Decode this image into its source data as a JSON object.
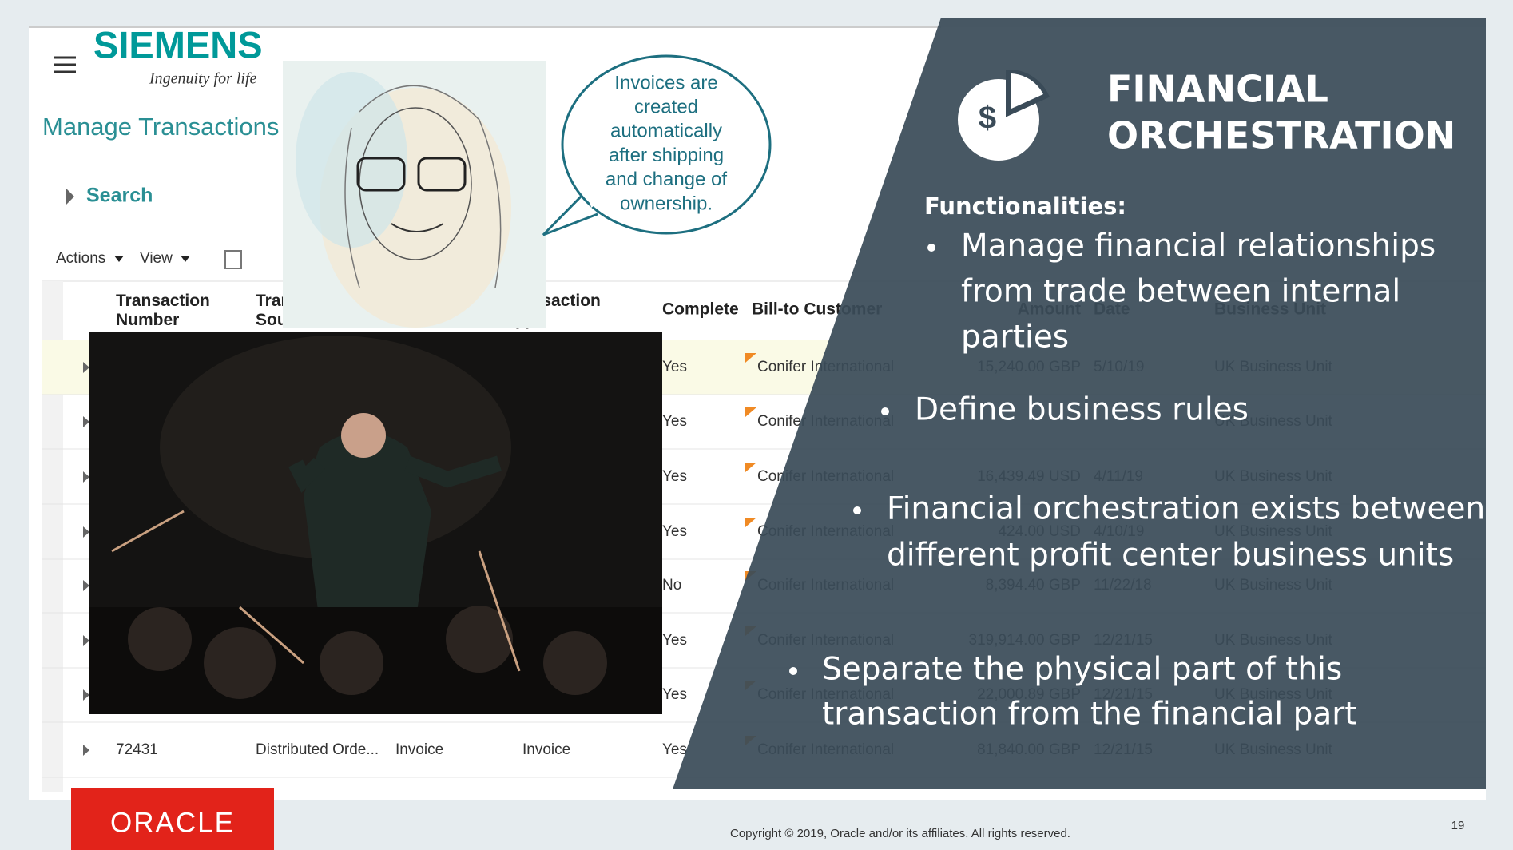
{
  "header": {
    "logo": "SIEMENS",
    "tagline": "Ingenuity for life",
    "page_title": "Manage Transactions",
    "search": "Search",
    "toolbar": [
      "Actions",
      "View"
    ]
  },
  "table": {
    "columns": [
      "Transaction Number",
      "Transaction Source",
      "Transaction Type",
      "Complete",
      "Bill-to Customer",
      "Amount",
      "Date",
      "Business Unit"
    ],
    "rows": [
      {
        "complete": "Yes",
        "customer": "Conifer International",
        "amount": "15,240.00 GBP",
        "date": "5/10/19",
        "unit": "UK Business Unit"
      },
      {
        "complete": "Yes",
        "customer": "Conifer International",
        "unit": "UK Business Unit"
      },
      {
        "complete": "Yes",
        "customer": "Conifer International",
        "amount": "16,439.49 USD",
        "date": "4/11/19",
        "unit": "UK Business Unit"
      },
      {
        "complete": "Yes",
        "customer": "Conifer International",
        "amount": "424.00 USD",
        "date": "4/10/19",
        "unit": "UK Business Unit"
      },
      {
        "complete": "No",
        "customer": "Conifer International",
        "amount": "8,394.40 GBP",
        "date": "11/22/18",
        "unit": "UK Business Unit"
      },
      {
        "complete": "Yes",
        "customer": "Conifer International",
        "amount": "319,914.00 GBP",
        "date": "12/21/15",
        "unit": "UK Business Unit"
      },
      {
        "complete": "Yes",
        "customer": "Conifer International",
        "amount": "22,000.89 GBP",
        "date": "12/21/15",
        "unit": "UK Business Unit"
      },
      {
        "number": "72431",
        "source": "Distributed Orde...",
        "type": "Invoice",
        "type2": "Invoice",
        "complete": "Yes",
        "customer": "Conifer International",
        "amount": "81,840.00 GBP",
        "date": "12/21/15",
        "unit": "UK Business Unit"
      }
    ]
  },
  "bubble": {
    "lines": [
      "Invoices are",
      "created",
      "automatically",
      "after shipping",
      "and change of",
      "ownership."
    ]
  },
  "panel": {
    "title": [
      "FINANCIAL",
      "ORCHESTRATION"
    ],
    "heading": "Functionalities:",
    "items": [
      [
        "Manage financial relationships",
        "from trade between internal",
        "parties"
      ],
      [
        "Define business rules"
      ],
      [
        "Financial orchestration exists between",
        "different profit center business units"
      ],
      [
        "Separate the physical part of this",
        "transaction from the financial part"
      ]
    ]
  },
  "footer": {
    "brand": "ORACLE",
    "copyright": "Copyright © 2019, Oracle and/or its affiliates. All rights reserved.",
    "page": "19"
  }
}
